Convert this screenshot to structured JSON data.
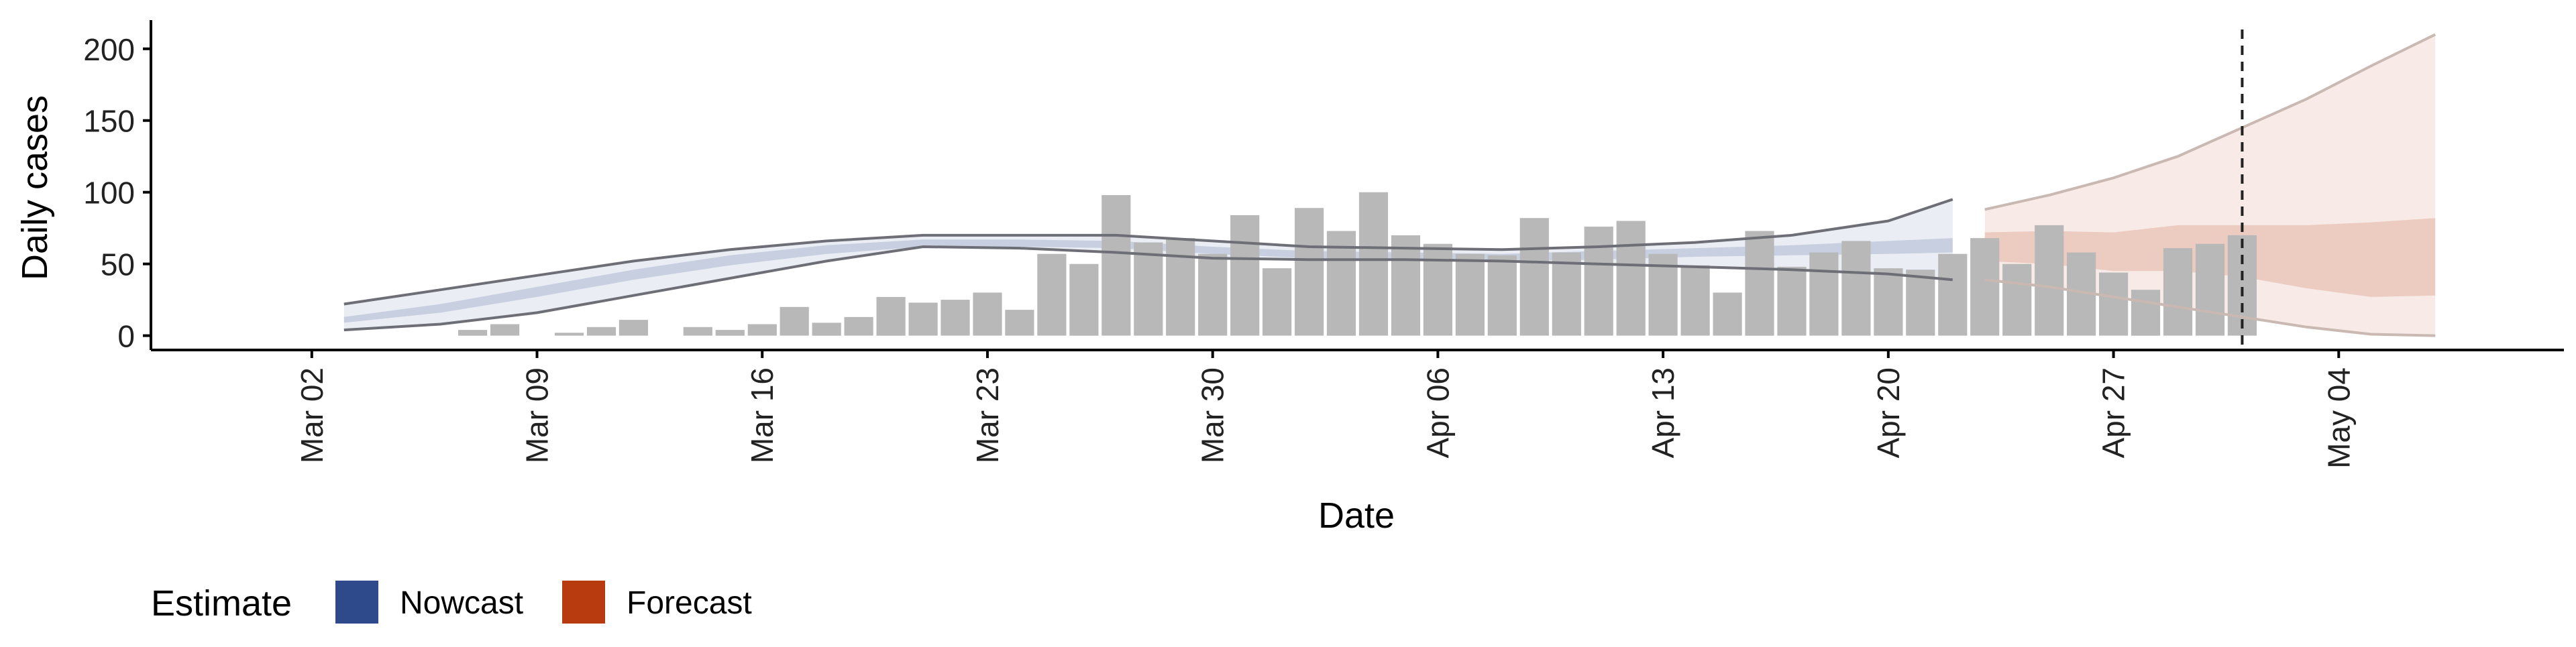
{
  "chart_data": {
    "type": "bar",
    "ylabel": "Daily cases",
    "xlabel": "Date",
    "ylim": [
      -10,
      220
    ],
    "xlim": [
      "2020-02-26",
      "2020-05-11"
    ],
    "yticks": [
      0,
      50,
      100,
      150,
      200
    ],
    "xticks": [
      {
        "date": "2020-03-02",
        "label": "Mar 02"
      },
      {
        "date": "2020-03-09",
        "label": "Mar 09"
      },
      {
        "date": "2020-03-16",
        "label": "Mar 16"
      },
      {
        "date": "2020-03-23",
        "label": "Mar 23"
      },
      {
        "date": "2020-03-30",
        "label": "Mar 30"
      },
      {
        "date": "2020-04-06",
        "label": "Apr 06"
      },
      {
        "date": "2020-04-13",
        "label": "Apr 13"
      },
      {
        "date": "2020-04-20",
        "label": "Apr 20"
      },
      {
        "date": "2020-04-27",
        "label": "Apr 27"
      },
      {
        "date": "2020-05-04",
        "label": "May 04"
      }
    ],
    "grid": false,
    "legend_placement": "bottom-left",
    "legend": {
      "title": "Estimate",
      "items": [
        {
          "label": "Nowcast",
          "color": "#2e4a8a"
        },
        {
          "label": "Forecast",
          "color": "#b83b10"
        }
      ]
    },
    "bar_color": "#b8b8b8",
    "reference_line_date": "2020-05-01",
    "reported_cases": {
      "dates": [
        "2020-03-07",
        "2020-03-08",
        "2020-03-10",
        "2020-03-11",
        "2020-03-12",
        "2020-03-14",
        "2020-03-15",
        "2020-03-16",
        "2020-03-17",
        "2020-03-18",
        "2020-03-19",
        "2020-03-20",
        "2020-03-21",
        "2020-03-22",
        "2020-03-23",
        "2020-03-24",
        "2020-03-25",
        "2020-03-26",
        "2020-03-27",
        "2020-03-28",
        "2020-03-29",
        "2020-03-30",
        "2020-03-31",
        "2020-04-01",
        "2020-04-02",
        "2020-04-03",
        "2020-04-04",
        "2020-04-05",
        "2020-04-06",
        "2020-04-07",
        "2020-04-08",
        "2020-04-09",
        "2020-04-10",
        "2020-04-11",
        "2020-04-12",
        "2020-04-13",
        "2020-04-14",
        "2020-04-15",
        "2020-04-16",
        "2020-04-17",
        "2020-04-18",
        "2020-04-19",
        "2020-04-20",
        "2020-04-21",
        "2020-04-22",
        "2020-04-23",
        "2020-04-24",
        "2020-04-25",
        "2020-04-26",
        "2020-04-27",
        "2020-04-28",
        "2020-04-29",
        "2020-04-30",
        "2020-05-01"
      ],
      "values": [
        4,
        8,
        2,
        6,
        11,
        6,
        4,
        8,
        20,
        9,
        13,
        27,
        23,
        25,
        30,
        18,
        57,
        50,
        98,
        65,
        68,
        57,
        84,
        47,
        89,
        73,
        100,
        70,
        64,
        57,
        56,
        82,
        58,
        76,
        80,
        57,
        49,
        30,
        73,
        48,
        58,
        66,
        47,
        46,
        57,
        68,
        50,
        77,
        58,
        44,
        32,
        61,
        64,
        70
      ]
    },
    "estimate_bands": [
      {
        "name": "Nowcast",
        "color": "#2e4a8a",
        "dates": [
          "2020-03-03",
          "2020-03-06",
          "2020-03-09",
          "2020-03-12",
          "2020-03-15",
          "2020-03-18",
          "2020-03-21",
          "2020-03-24",
          "2020-03-27",
          "2020-03-30",
          "2020-04-02",
          "2020-04-05",
          "2020-04-08",
          "2020-04-11",
          "2020-04-14",
          "2020-04-17",
          "2020-04-20",
          "2020-04-22"
        ],
        "outer_upper": [
          22,
          32,
          42,
          52,
          60,
          66,
          70,
          70,
          70,
          66,
          62,
          61,
          60,
          62,
          65,
          70,
          80,
          95
        ],
        "inner_upper": [
          13,
          22,
          34,
          46,
          56,
          63,
          67,
          67,
          66,
          62,
          59,
          58,
          57,
          59,
          61,
          63,
          66,
          68
        ],
        "inner_lower": [
          9,
          16,
          27,
          39,
          49,
          57,
          62,
          62,
          61,
          57,
          54,
          53,
          52,
          53,
          55,
          56,
          57,
          58
        ],
        "outer_lower": [
          4,
          8,
          16,
          28,
          40,
          52,
          62,
          61,
          58,
          54,
          53,
          53,
          52,
          50,
          48,
          46,
          43,
          39
        ]
      },
      {
        "name": "Forecast",
        "color": "#b83b10",
        "dates": [
          "2020-04-23",
          "2020-04-25",
          "2020-04-27",
          "2020-04-29",
          "2020-05-01",
          "2020-05-03",
          "2020-05-05",
          "2020-05-07"
        ],
        "outer_upper": [
          88,
          98,
          110,
          125,
          145,
          165,
          188,
          210
        ],
        "inner_upper": [
          72,
          73,
          72,
          77,
          77,
          77,
          79,
          82
        ],
        "inner_lower": [
          52,
          50,
          45,
          45,
          41,
          33,
          27,
          28
        ],
        "outer_lower": [
          39,
          34,
          27,
          20,
          13,
          6,
          1,
          0
        ]
      }
    ]
  }
}
